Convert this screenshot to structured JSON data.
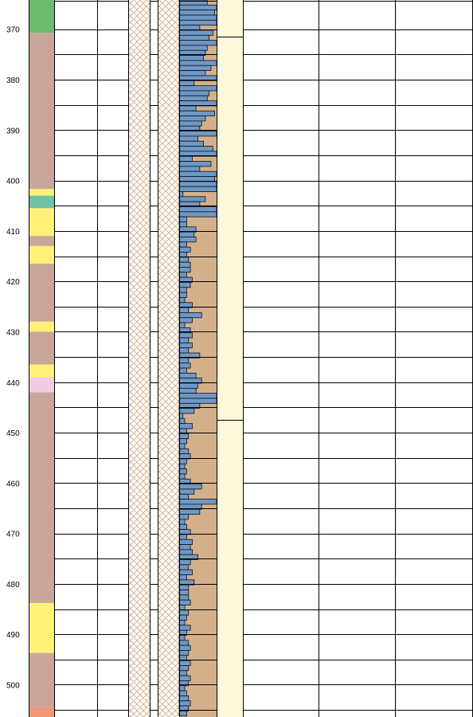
{
  "depth_axis": {
    "min": 364.2,
    "max": 506.4,
    "label_ticks": [
      370,
      380,
      390,
      400,
      410,
      420,
      430,
      440,
      450,
      460,
      470,
      480,
      490,
      500
    ],
    "grid_lines": [
      364.3,
      370,
      375,
      380,
      385,
      390,
      395,
      400,
      405,
      410,
      415,
      420,
      425,
      430,
      435,
      440,
      445,
      450,
      455,
      460,
      465,
      470,
      475,
      480,
      485,
      490,
      495,
      500,
      505
    ]
  },
  "colors": {
    "lithology_green": "#6dbb6d",
    "lithology_rosy": "#c9a69a",
    "lithology_yellow": "#fef176",
    "lithology_teal": "#6fc2a2",
    "lithology_pink": "#f0cce2",
    "lithology_salmon": "#ef9977",
    "fill_tan": "#d4b08a",
    "bar_blue": "#6f98c6",
    "pattern_tan": "#d9b998",
    "unit_cream": "#fbf8dc",
    "grid": "#000000"
  },
  "chart_data": {
    "type": "well-log",
    "lithology_intervals": [
      {
        "top": 364.2,
        "base": 370.7,
        "color_key": "lithology_green"
      },
      {
        "top": 370.7,
        "base": 401.7,
        "color_key": "lithology_rosy"
      },
      {
        "top": 401.7,
        "base": 403.0,
        "color_key": "lithology_yellow"
      },
      {
        "top": 403.0,
        "base": 405.5,
        "color_key": "lithology_teal"
      },
      {
        "top": 405.5,
        "base": 411.0,
        "color_key": "lithology_yellow"
      },
      {
        "top": 411.0,
        "base": 413.0,
        "color_key": "lithology_rosy"
      },
      {
        "top": 413.0,
        "base": 416.5,
        "color_key": "lithology_yellow"
      },
      {
        "top": 416.5,
        "base": 428.0,
        "color_key": "lithology_rosy"
      },
      {
        "top": 428.0,
        "base": 430.0,
        "color_key": "lithology_yellow"
      },
      {
        "top": 430.0,
        "base": 436.5,
        "color_key": "lithology_rosy"
      },
      {
        "top": 436.5,
        "base": 439.0,
        "color_key": "lithology_yellow"
      },
      {
        "top": 439.0,
        "base": 442.0,
        "color_key": "lithology_pink"
      },
      {
        "top": 442.0,
        "base": 483.8,
        "color_key": "lithology_rosy"
      },
      {
        "top": 483.8,
        "base": 493.7,
        "color_key": "lithology_yellow"
      },
      {
        "top": 493.7,
        "base": 504.4,
        "color_key": "lithology_rosy"
      },
      {
        "top": 504.4,
        "base": 506.4,
        "color_key": "lithology_salmon"
      }
    ],
    "unit_boundaries": [
      371.5,
      447.5
    ],
    "bar_profile": {
      "step": 1,
      "start_depth": 364.2,
      "full_scale": 1.0,
      "values": [
        0.75,
        1.0,
        0.95,
        1.0,
        1.0,
        0.55,
        0.9,
        0.8,
        1.0,
        0.75,
        0.7,
        0.65,
        1.0,
        0.85,
        0.7,
        1.0,
        0.4,
        1.0,
        0.8,
        0.75,
        1.0,
        0.45,
        0.95,
        0.7,
        0.6,
        0.55,
        1.0,
        0.5,
        0.65,
        0.9,
        1.0,
        0.35,
        0.85,
        0.55,
        1.0,
        0.95,
        1.0,
        1.0,
        0.1,
        0.7,
        0.55,
        1.0,
        1.0,
        0.2,
        0.2,
        0.45,
        0.4,
        0.45,
        0.2,
        0.3,
        0.2,
        0.25,
        0.3,
        0.3,
        0.2,
        0.35,
        0.3,
        0.2,
        0.2,
        0.15,
        0.35,
        0.25,
        0.6,
        0.35,
        0.15,
        0.3,
        0.35,
        0.25,
        0.35,
        0.25,
        0.55,
        0.25,
        0.3,
        0.2,
        0.45,
        0.6,
        0.5,
        0.45,
        1.0,
        1.0,
        0.55,
        0.4,
        0.1,
        0.15,
        0.35,
        0.2,
        0.25,
        0.2,
        0.15,
        0.25,
        0.3,
        0.2,
        0.15,
        0.2,
        0.15,
        0.3,
        0.6,
        0.4,
        0.25,
        1.0,
        0.6,
        0.55,
        0.25,
        0.15,
        0.2,
        0.3,
        0.2,
        0.35,
        0.3,
        0.35,
        0.5,
        0.3,
        0.25,
        0.35,
        0.2,
        0.4,
        0.25,
        0.25,
        0.25,
        0.3,
        0.15,
        0.25,
        0.2,
        0.15,
        0.3,
        0.2,
        0.15,
        0.25,
        0.3,
        0.25,
        0.2,
        0.3,
        0.25,
        0.2,
        0.3,
        0.25,
        0.15,
        0.2,
        0.25,
        0.3,
        0.25,
        0.2
      ]
    }
  },
  "empty_columns": 5
}
